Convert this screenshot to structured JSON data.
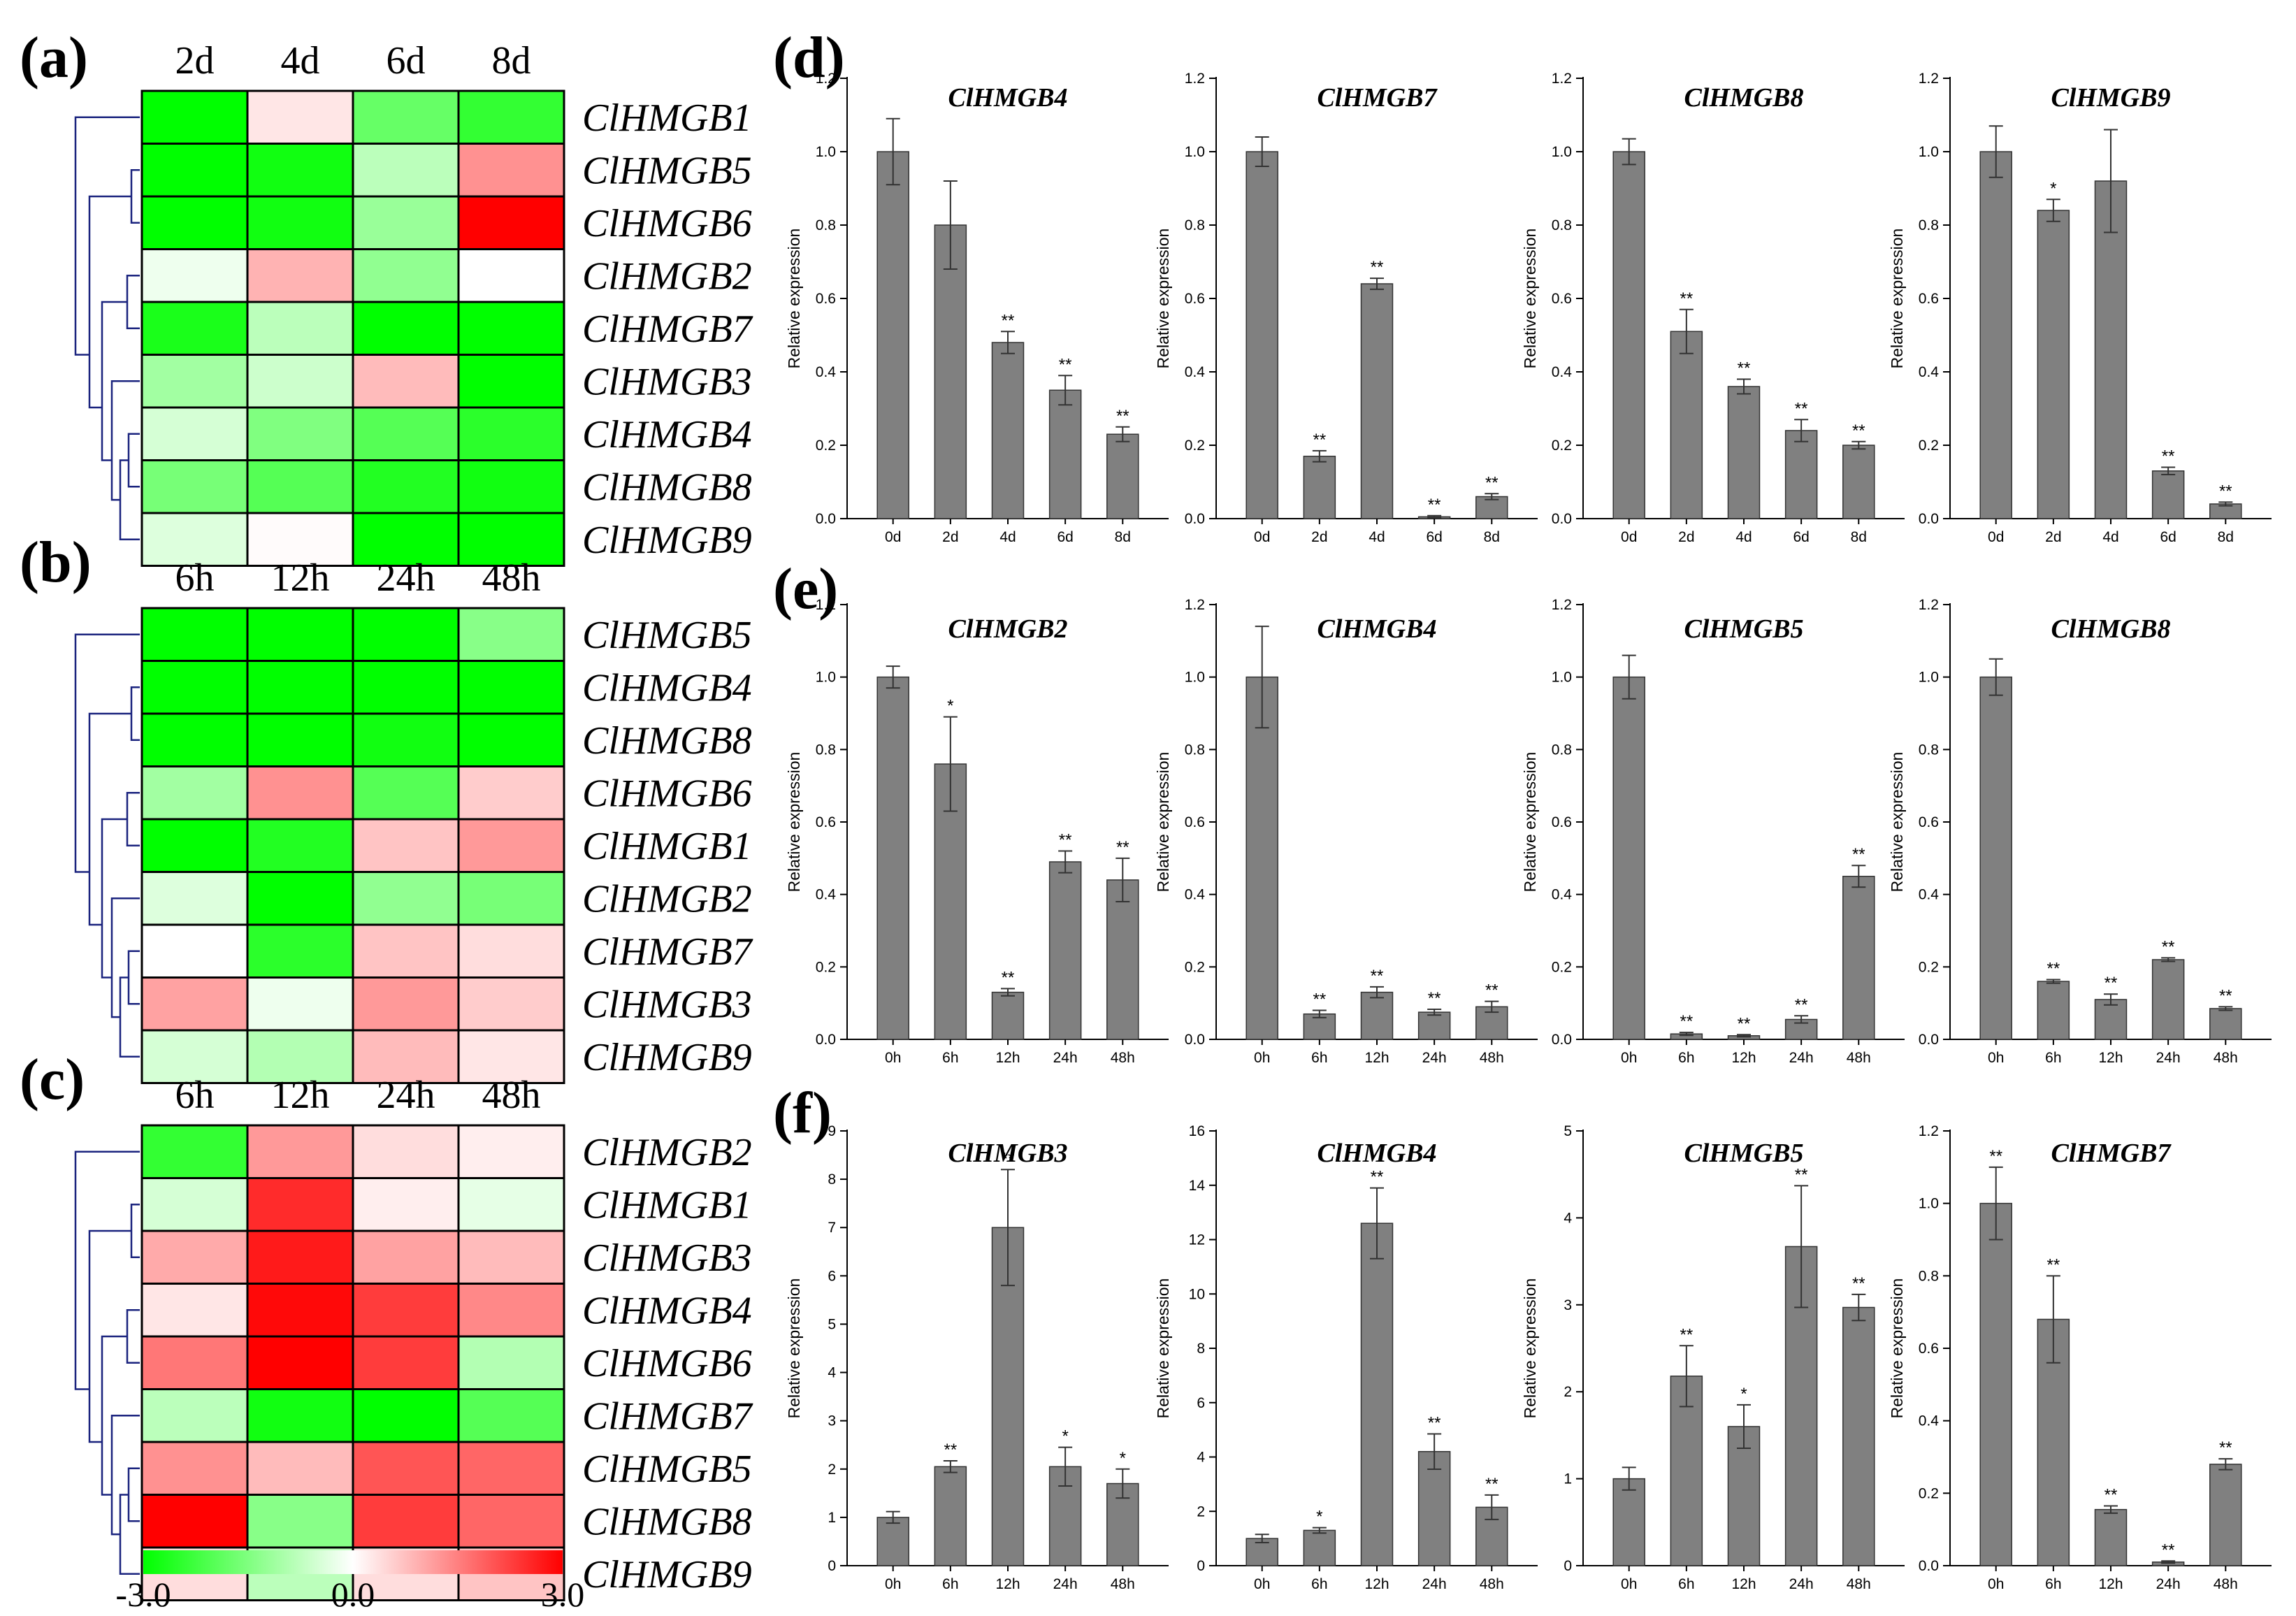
{
  "chart_data": [
    {
      "type": "heatmap",
      "panel_label": "(a)",
      "columns": [
        "2d",
        "4d",
        "6d",
        "8d"
      ],
      "rows": [
        "ClHMGB1",
        "ClHMGB5",
        "ClHMGB6",
        "ClHMGB2",
        "ClHMGB7",
        "ClHMGB3",
        "ClHMGB4",
        "ClHMGB8",
        "ClHMGB9"
      ],
      "values": [
        [
          -3.0,
          0.3,
          -1.8,
          -2.4
        ],
        [
          -3.0,
          -2.8,
          -0.8,
          1.3
        ],
        [
          -3.0,
          -2.8,
          -1.2,
          3.0
        ],
        [
          -0.2,
          0.9,
          -1.3,
          0.0
        ],
        [
          -2.7,
          -0.8,
          -3.0,
          -3.0
        ],
        [
          -1.1,
          -0.6,
          0.8,
          -3.0
        ],
        [
          -0.5,
          -1.5,
          -2.0,
          -2.5
        ],
        [
          -1.6,
          -2.0,
          -2.6,
          -2.8
        ],
        [
          -0.4,
          0.05,
          -3.0,
          -3.0
        ]
      ]
    },
    {
      "type": "heatmap",
      "panel_label": "(b)",
      "columns": [
        "6h",
        "12h",
        "24h",
        "48h"
      ],
      "rows": [
        "ClHMGB5",
        "ClHMGB4",
        "ClHMGB8",
        "ClHMGB6",
        "ClHMGB1",
        "ClHMGB2",
        "ClHMGB7",
        "ClHMGB3",
        "ClHMGB9"
      ],
      "values": [
        [
          -3.0,
          -3.0,
          -3.0,
          -1.4
        ],
        [
          -3.0,
          -3.0,
          -3.0,
          -3.0
        ],
        [
          -3.0,
          -3.0,
          -2.8,
          -3.0
        ],
        [
          -1.1,
          1.3,
          -2.0,
          0.6
        ],
        [
          -3.0,
          -2.6,
          0.7,
          1.2
        ],
        [
          -0.4,
          -3.0,
          -1.3,
          -1.6
        ],
        [
          0.0,
          -2.5,
          0.7,
          0.4
        ],
        [
          1.1,
          -0.2,
          1.2,
          0.6
        ],
        [
          -0.5,
          -0.9,
          0.8,
          0.3
        ]
      ]
    },
    {
      "type": "heatmap",
      "panel_label": "(c)",
      "columns": [
        "6h",
        "12h",
        "24h",
        "48h"
      ],
      "rows": [
        "ClHMGB2",
        "ClHMGB1",
        "ClHMGB3",
        "ClHMGB4",
        "ClHMGB6",
        "ClHMGB7",
        "ClHMGB5",
        "ClHMGB8",
        "ClHMGB9"
      ],
      "values": [
        [
          -2.4,
          1.2,
          0.4,
          0.2
        ],
        [
          -0.5,
          2.5,
          0.2,
          -0.3
        ],
        [
          1.0,
          2.7,
          1.1,
          0.8
        ],
        [
          0.3,
          2.9,
          2.3,
          1.4
        ],
        [
          1.6,
          3.0,
          2.3,
          -0.9
        ],
        [
          -0.8,
          -2.8,
          -3.0,
          -2.0
        ],
        [
          1.3,
          0.8,
          2.0,
          1.8
        ],
        [
          3.0,
          -1.4,
          2.3,
          1.8
        ],
        [
          0.4,
          -0.8,
          0.4,
          0.7
        ]
      ],
      "colorbar": {
        "min": -3.0,
        "max": 3.0,
        "labels": [
          "-3.0",
          "0.0",
          "3.0"
        ],
        "low_color": "#00ff00",
        "mid_color": "#ffffff",
        "high_color": "#ff0000"
      }
    },
    {
      "type": "bar",
      "panel_label": "(d)",
      "title": "ClHMGB4",
      "ylabel": "Relative expression",
      "ylim": [
        0,
        1.2
      ],
      "yticks": [
        "0.0",
        "0.2",
        "0.4",
        "0.6",
        "0.8",
        "1.0",
        "1.2"
      ],
      "categories": [
        "0d",
        "2d",
        "4d",
        "6d",
        "8d"
      ],
      "values": [
        1.0,
        0.8,
        0.48,
        0.35,
        0.23
      ],
      "errors": [
        0.09,
        0.12,
        0.03,
        0.04,
        0.02
      ],
      "significance": [
        "",
        "",
        "**",
        "**",
        "**"
      ]
    },
    {
      "type": "bar",
      "title": "ClHMGB7",
      "ylabel": "Relative expression",
      "ylim": [
        0,
        1.2
      ],
      "yticks": [
        "0.0",
        "0.2",
        "0.4",
        "0.6",
        "0.8",
        "1.0",
        "1.2"
      ],
      "categories": [
        "0d",
        "2d",
        "4d",
        "6d",
        "8d"
      ],
      "values": [
        1.0,
        0.17,
        0.64,
        0.005,
        0.06
      ],
      "errors": [
        0.04,
        0.015,
        0.015,
        0.003,
        0.008
      ],
      "significance": [
        "",
        "**",
        "**",
        "**",
        "**"
      ]
    },
    {
      "type": "bar",
      "title": "ClHMGB8",
      "ylabel": "Relative expression",
      "ylim": [
        0,
        1.2
      ],
      "yticks": [
        "0.0",
        "0.2",
        "0.4",
        "0.6",
        "0.8",
        "1.0",
        "1.2"
      ],
      "categories": [
        "0d",
        "2d",
        "4d",
        "6d",
        "8d"
      ],
      "values": [
        1.0,
        0.51,
        0.36,
        0.24,
        0.2
      ],
      "errors": [
        0.035,
        0.06,
        0.02,
        0.03,
        0.01
      ],
      "significance": [
        "",
        "**",
        "**",
        "**",
        "**"
      ]
    },
    {
      "type": "bar",
      "title": "ClHMGB9",
      "ylabel": "Relative expression",
      "ylim": [
        0,
        1.2
      ],
      "yticks": [
        "0.0",
        "0.2",
        "0.4",
        "0.6",
        "0.8",
        "1.0",
        "1.2"
      ],
      "categories": [
        "0d",
        "2d",
        "4d",
        "6d",
        "8d"
      ],
      "values": [
        1.0,
        0.84,
        0.92,
        0.13,
        0.04
      ],
      "errors": [
        0.07,
        0.03,
        0.14,
        0.01,
        0.005
      ],
      "significance": [
        "",
        "*",
        "",
        "**",
        "**"
      ]
    },
    {
      "type": "bar",
      "panel_label": "(e)",
      "title": "ClHMGB2",
      "ylabel": "Relative expression",
      "ylim": [
        0,
        1.2
      ],
      "yticks": [
        "0.0",
        "0.2",
        "0.4",
        "0.6",
        "0.8",
        "1.0",
        "1.2"
      ],
      "categories": [
        "0h",
        "6h",
        "12h",
        "24h",
        "48h"
      ],
      "values": [
        1.0,
        0.76,
        0.13,
        0.49,
        0.44
      ],
      "errors": [
        0.03,
        0.13,
        0.01,
        0.03,
        0.06
      ],
      "significance": [
        "",
        "*",
        "**",
        "**",
        "**"
      ]
    },
    {
      "type": "bar",
      "title": "ClHMGB4",
      "ylabel": "Relative expression",
      "ylim": [
        0,
        1.2
      ],
      "yticks": [
        "0.0",
        "0.2",
        "0.4",
        "0.6",
        "0.8",
        "1.0",
        "1.2"
      ],
      "categories": [
        "0h",
        "6h",
        "12h",
        "24h",
        "48h"
      ],
      "values": [
        1.0,
        0.07,
        0.13,
        0.075,
        0.09
      ],
      "errors": [
        0.14,
        0.01,
        0.015,
        0.008,
        0.015
      ],
      "significance": [
        "",
        "**",
        "**",
        "**",
        "**"
      ]
    },
    {
      "type": "bar",
      "title": "ClHMGB5",
      "ylabel": "Relative expression",
      "ylim": [
        0,
        1.2
      ],
      "yticks": [
        "0.0",
        "0.2",
        "0.4",
        "0.6",
        "0.8",
        "1.0",
        "1.2"
      ],
      "categories": [
        "0h",
        "6h",
        "12h",
        "24h",
        "48h"
      ],
      "values": [
        1.0,
        0.015,
        0.01,
        0.055,
        0.45
      ],
      "errors": [
        0.06,
        0.004,
        0.003,
        0.01,
        0.03
      ],
      "significance": [
        "",
        "**",
        "**",
        "**",
        "**"
      ]
    },
    {
      "type": "bar",
      "title": "ClHMGB8",
      "ylabel": "Relative expression",
      "ylim": [
        0,
        1.2
      ],
      "yticks": [
        "0.0",
        "0.2",
        "0.4",
        "0.6",
        "0.8",
        "1.0",
        "1.2"
      ],
      "categories": [
        "0h",
        "6h",
        "12h",
        "24h",
        "48h"
      ],
      "values": [
        1.0,
        0.16,
        0.11,
        0.22,
        0.085
      ],
      "errors": [
        0.05,
        0.005,
        0.015,
        0.005,
        0.005
      ],
      "significance": [
        "",
        "**",
        "**",
        "**",
        "**"
      ]
    },
    {
      "type": "bar",
      "panel_label": "(f)",
      "title": "ClHMGB3",
      "ylabel": "Relative expression",
      "ylim": [
        0,
        9
      ],
      "yticks": [
        "0",
        "1",
        "2",
        "3",
        "4",
        "5",
        "6",
        "7",
        "8",
        "9"
      ],
      "categories": [
        "0h",
        "6h",
        "12h",
        "24h",
        "48h"
      ],
      "values": [
        1.0,
        2.05,
        7.0,
        2.05,
        1.7
      ],
      "errors": [
        0.12,
        0.12,
        1.2,
        0.4,
        0.3
      ],
      "significance": [
        "",
        "**",
        "**",
        "*",
        "*"
      ]
    },
    {
      "type": "bar",
      "title": "ClHMGB4",
      "ylabel": "Relative expression",
      "ylim": [
        0,
        16
      ],
      "yticks": [
        "0",
        "2",
        "4",
        "6",
        "8",
        "10",
        "12",
        "14",
        "16"
      ],
      "categories": [
        "0h",
        "6h",
        "12h",
        "24h",
        "48h"
      ],
      "values": [
        1.0,
        1.3,
        12.6,
        4.2,
        2.15
      ],
      "errors": [
        0.15,
        0.1,
        1.3,
        0.65,
        0.45
      ],
      "significance": [
        "",
        "*",
        "**",
        "**",
        "**"
      ]
    },
    {
      "type": "bar",
      "title": "ClHMGB5",
      "ylabel": "Relative expression",
      "ylim": [
        0,
        5
      ],
      "yticks": [
        "0",
        "1",
        "2",
        "3",
        "4",
        "5"
      ],
      "categories": [
        "0h",
        "6h",
        "12h",
        "24h",
        "48h"
      ],
      "values": [
        1.0,
        2.18,
        1.6,
        3.67,
        2.97
      ],
      "errors": [
        0.13,
        0.35,
        0.25,
        0.7,
        0.15
      ],
      "significance": [
        "",
        "**",
        "*",
        "**",
        "**"
      ]
    },
    {
      "type": "bar",
      "title": "ClHMGB7",
      "ylabel": "Relative expression",
      "ylim": [
        0,
        1.2
      ],
      "yticks": [
        "0.0",
        "0.2",
        "0.4",
        "0.6",
        "0.8",
        "1.0",
        "1.2"
      ],
      "categories": [
        "0h",
        "6h",
        "12h",
        "24h",
        "48h"
      ],
      "values": [
        1.0,
        0.68,
        0.155,
        0.01,
        0.28
      ],
      "errors": [
        0.1,
        0.12,
        0.01,
        0.003,
        0.015
      ],
      "significance": [
        "**",
        "**",
        "**",
        "**",
        "**"
      ]
    }
  ]
}
